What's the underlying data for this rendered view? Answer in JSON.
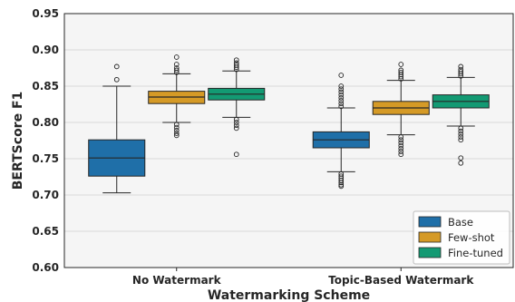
{
  "chart_data": {
    "type": "boxplot",
    "xlabel": "Watermarking Scheme",
    "ylabel": "BERTScore F1",
    "ylim": [
      0.6,
      0.95
    ],
    "yticks": [
      "0.60",
      "0.65",
      "0.70",
      "0.75",
      "0.80",
      "0.85",
      "0.90",
      "0.95"
    ],
    "grid": "horizontal",
    "legend_position": "bottom-right",
    "categories": [
      "No Watermark",
      "Topic-Based Watermark"
    ],
    "series": [
      {
        "name": "Base",
        "color": "#1f6fa8",
        "boxes": [
          {
            "whislo": 0.703,
            "q1": 0.726,
            "med": 0.751,
            "q3": 0.776,
            "whishi": 0.85,
            "fliers": [
              0.859,
              0.877
            ]
          },
          {
            "whislo": 0.732,
            "q1": 0.765,
            "med": 0.776,
            "q3": 0.787,
            "whishi": 0.82,
            "fliers": [
              0.822,
              0.826,
              0.83,
              0.834,
              0.838,
              0.842,
              0.846,
              0.85,
              0.865,
              0.729,
              0.726,
              0.723,
              0.72,
              0.717,
              0.714,
              0.712
            ]
          }
        ]
      },
      {
        "name": "Few-shot",
        "color": "#d59a26",
        "boxes": [
          {
            "whislo": 0.8,
            "q1": 0.826,
            "med": 0.835,
            "q3": 0.843,
            "whishi": 0.867,
            "fliers": [
              0.869,
              0.872,
              0.875,
              0.88,
              0.89,
              0.797,
              0.793,
              0.789,
              0.785,
              0.782
            ]
          },
          {
            "whislo": 0.783,
            "q1": 0.811,
            "med": 0.82,
            "q3": 0.829,
            "whishi": 0.858,
            "fliers": [
              0.86,
              0.863,
              0.866,
              0.869,
              0.872,
              0.88,
              0.78,
              0.776,
              0.772,
              0.768,
              0.764,
              0.76,
              0.756
            ]
          }
        ]
      },
      {
        "name": "Fine-tuned",
        "color": "#139a73",
        "boxes": [
          {
            "whislo": 0.807,
            "q1": 0.831,
            "med": 0.839,
            "q3": 0.847,
            "whishi": 0.871,
            "fliers": [
              0.873,
              0.876,
              0.879,
              0.882,
              0.886,
              0.804,
              0.8,
              0.796,
              0.792,
              0.756
            ]
          },
          {
            "whislo": 0.795,
            "q1": 0.82,
            "med": 0.829,
            "q3": 0.838,
            "whishi": 0.862,
            "fliers": [
              0.864,
              0.867,
              0.87,
              0.873,
              0.877,
              0.792,
              0.788,
              0.784,
              0.78,
              0.776,
              0.751,
              0.744
            ]
          }
        ]
      }
    ]
  }
}
